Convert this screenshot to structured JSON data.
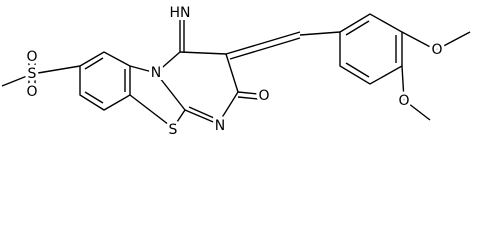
{
  "atoms": [
    {
      "label": "O"
    },
    {
      "label": "S"
    },
    {
      "label": "O"
    },
    {
      "label": "N"
    },
    {
      "label": "HN"
    },
    {
      "label": "S"
    },
    {
      "label": "N"
    },
    {
      "label": "O"
    },
    {
      "label": "O"
    },
    {
      "label": "O"
    }
  ]
}
